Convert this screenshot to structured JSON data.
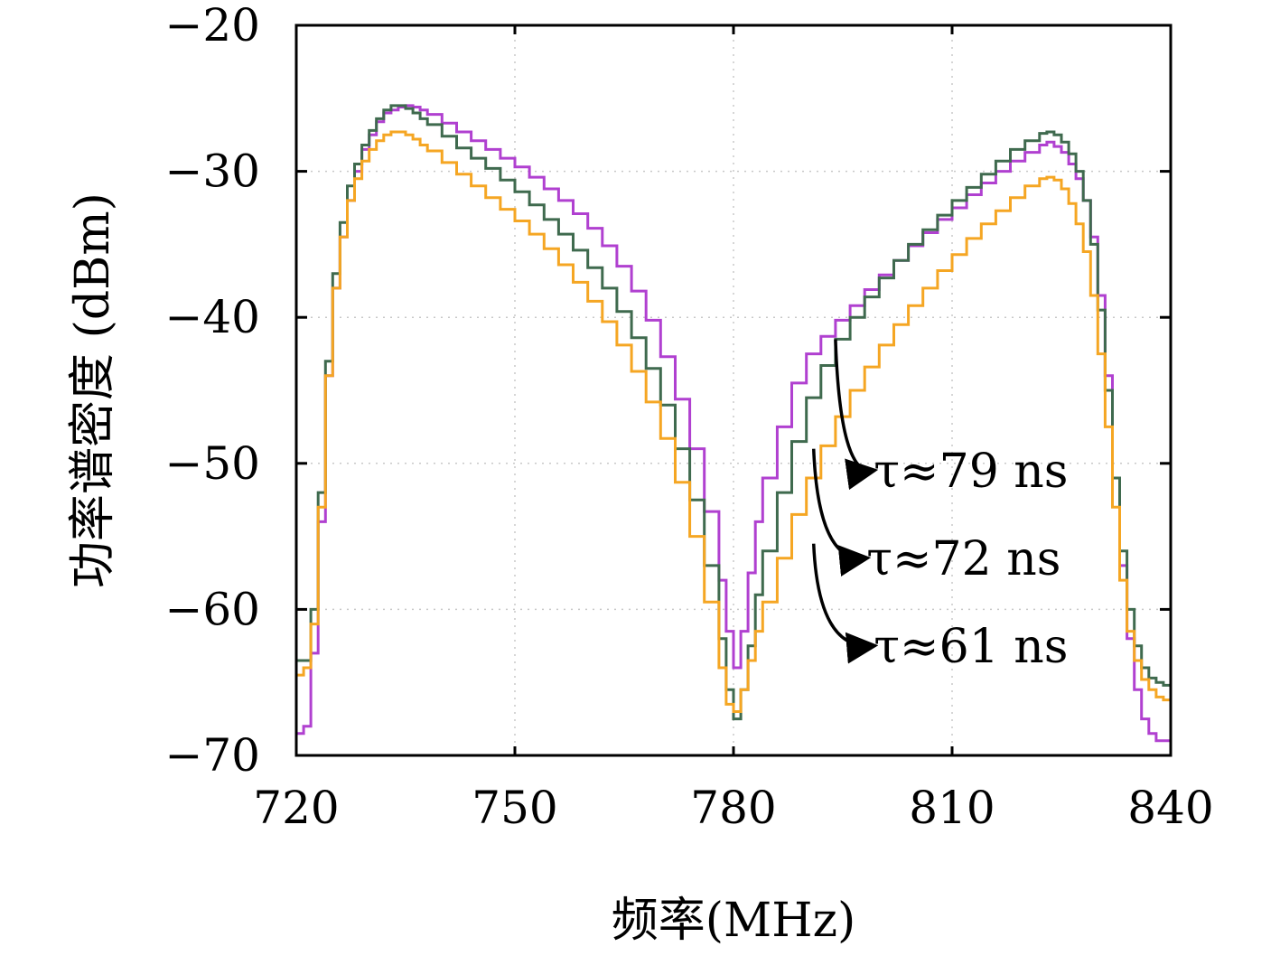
{
  "chart_data": {
    "type": "line",
    "title": "",
    "xlabel": "频率(MHz)",
    "ylabel": "功率谱密度 (dBm)",
    "xlim": [
      720,
      840
    ],
    "ylim": [
      -70,
      -20
    ],
    "xticks": [
      720,
      750,
      780,
      810,
      840
    ],
    "yticks": [
      -20,
      -30,
      -40,
      -50,
      -60,
      -70
    ],
    "xtick_labels": [
      "720",
      "750",
      "780",
      "810",
      "840"
    ],
    "ytick_labels": [
      "−20",
      "−30",
      "−40",
      "−50",
      "−60",
      "−70"
    ],
    "grid": true,
    "series": [
      {
        "name": "τ≈79 ns",
        "color": "#b040d0",
        "points": [
          [
            720,
            -68.5
          ],
          [
            721,
            -68
          ],
          [
            722,
            -63
          ],
          [
            723,
            -54
          ],
          [
            724,
            -44
          ],
          [
            725,
            -38
          ],
          [
            726,
            -34.5
          ],
          [
            727,
            -32
          ],
          [
            728,
            -30
          ],
          [
            729,
            -28.5
          ],
          [
            730,
            -27.5
          ],
          [
            731,
            -26.6
          ],
          [
            732,
            -26.0
          ],
          [
            733,
            -25.8
          ],
          [
            734,
            -25.6
          ],
          [
            735,
            -25.5
          ],
          [
            736,
            -25.6
          ],
          [
            737,
            -25.8
          ],
          [
            738,
            -26.1
          ],
          [
            740,
            -26.7
          ],
          [
            742,
            -27.3
          ],
          [
            744,
            -27.9
          ],
          [
            746,
            -28.5
          ],
          [
            748,
            -29.1
          ],
          [
            750,
            -29.7
          ],
          [
            752,
            -30.4
          ],
          [
            754,
            -31.2
          ],
          [
            756,
            -32.0
          ],
          [
            758,
            -32.9
          ],
          [
            760,
            -33.9
          ],
          [
            762,
            -35.1
          ],
          [
            764,
            -36.5
          ],
          [
            766,
            -38.2
          ],
          [
            768,
            -40.2
          ],
          [
            770,
            -42.7
          ],
          [
            772,
            -45.6
          ],
          [
            774,
            -49.0
          ],
          [
            776,
            -53.3
          ],
          [
            778,
            -58.0
          ],
          [
            779,
            -61.5
          ],
          [
            780,
            -64.0
          ],
          [
            781,
            -61.5
          ],
          [
            782,
            -57.5
          ],
          [
            783,
            -54.0
          ],
          [
            784,
            -51.0
          ],
          [
            786,
            -47.5
          ],
          [
            788,
            -44.5
          ],
          [
            790,
            -42.5
          ],
          [
            792,
            -41.3
          ],
          [
            794,
            -40.2
          ],
          [
            796,
            -39.2
          ],
          [
            798,
            -38.1
          ],
          [
            800,
            -37.1
          ],
          [
            802,
            -36.1
          ],
          [
            804,
            -35.1
          ],
          [
            806,
            -34.2
          ],
          [
            808,
            -33.3
          ],
          [
            810,
            -32.5
          ],
          [
            812,
            -31.6
          ],
          [
            814,
            -30.8
          ],
          [
            816,
            -30.0
          ],
          [
            818,
            -29.3
          ],
          [
            820,
            -28.7
          ],
          [
            822,
            -28.2
          ],
          [
            823,
            -28.0
          ],
          [
            824,
            -28.3
          ],
          [
            825,
            -28.7
          ],
          [
            826,
            -29.5
          ],
          [
            827,
            -30.5
          ],
          [
            828,
            -32.0
          ],
          [
            829,
            -34.5
          ],
          [
            830,
            -38.5
          ],
          [
            831,
            -44
          ],
          [
            832,
            -51
          ],
          [
            833,
            -57
          ],
          [
            834,
            -62
          ],
          [
            835,
            -65.5
          ],
          [
            836,
            -67.5
          ],
          [
            837,
            -68.5
          ],
          [
            838,
            -69.0
          ],
          [
            839,
            -69.0
          ],
          [
            840,
            -69.0
          ]
        ]
      },
      {
        "name": "τ≈72 ns",
        "color": "#3f6a4e",
        "points": [
          [
            720,
            -63.5
          ],
          [
            721,
            -63.5
          ],
          [
            722,
            -60
          ],
          [
            723,
            -52
          ],
          [
            724,
            -43
          ],
          [
            725,
            -37
          ],
          [
            726,
            -33.5
          ],
          [
            727,
            -31
          ],
          [
            728,
            -29.5
          ],
          [
            729,
            -28.2
          ],
          [
            730,
            -27.2
          ],
          [
            731,
            -26.4
          ],
          [
            732,
            -25.8
          ],
          [
            733,
            -25.5
          ],
          [
            734,
            -25.5
          ],
          [
            735,
            -25.7
          ],
          [
            736,
            -26.0
          ],
          [
            737,
            -26.4
          ],
          [
            738,
            -26.8
          ],
          [
            740,
            -27.6
          ],
          [
            742,
            -28.4
          ],
          [
            744,
            -29.1
          ],
          [
            746,
            -29.8
          ],
          [
            748,
            -30.6
          ],
          [
            750,
            -31.4
          ],
          [
            752,
            -32.3
          ],
          [
            754,
            -33.3
          ],
          [
            756,
            -34.3
          ],
          [
            758,
            -35.4
          ],
          [
            760,
            -36.6
          ],
          [
            762,
            -38.0
          ],
          [
            764,
            -39.6
          ],
          [
            766,
            -41.4
          ],
          [
            768,
            -43.5
          ],
          [
            770,
            -46.0
          ],
          [
            772,
            -49.0
          ],
          [
            774,
            -52.5
          ],
          [
            776,
            -57.0
          ],
          [
            778,
            -62.0
          ],
          [
            779,
            -65.5
          ],
          [
            780,
            -67.5
          ],
          [
            781,
            -65.5
          ],
          [
            782,
            -62.5
          ],
          [
            783,
            -59.0
          ],
          [
            784,
            -56.0
          ],
          [
            786,
            -52.0
          ],
          [
            788,
            -48.5
          ],
          [
            790,
            -45.5
          ],
          [
            792,
            -43.3
          ],
          [
            794,
            -41.5
          ],
          [
            796,
            -40.0
          ],
          [
            798,
            -38.6
          ],
          [
            800,
            -37.3
          ],
          [
            802,
            -36.1
          ],
          [
            804,
            -35.0
          ],
          [
            806,
            -34.0
          ],
          [
            808,
            -33.0
          ],
          [
            810,
            -32.0
          ],
          [
            812,
            -31.1
          ],
          [
            814,
            -30.2
          ],
          [
            816,
            -29.3
          ],
          [
            818,
            -28.5
          ],
          [
            820,
            -27.9
          ],
          [
            822,
            -27.4
          ],
          [
            823,
            -27.3
          ],
          [
            824,
            -27.5
          ],
          [
            825,
            -28.0
          ],
          [
            826,
            -28.8
          ],
          [
            827,
            -30.0
          ],
          [
            828,
            -32.0
          ],
          [
            829,
            -35.0
          ],
          [
            830,
            -39.5
          ],
          [
            831,
            -45
          ],
          [
            832,
            -51
          ],
          [
            833,
            -56
          ],
          [
            834,
            -60
          ],
          [
            835,
            -62.5
          ],
          [
            836,
            -64
          ],
          [
            837,
            -64.7
          ],
          [
            838,
            -65.0
          ],
          [
            839,
            -65.2
          ],
          [
            840,
            -65.2
          ]
        ]
      },
      {
        "name": "τ≈61 ns",
        "color": "#f5a623",
        "points": [
          [
            720,
            -64.5
          ],
          [
            721,
            -64
          ],
          [
            722,
            -61
          ],
          [
            723,
            -53
          ],
          [
            724,
            -44
          ],
          [
            725,
            -38
          ],
          [
            726,
            -34.5
          ],
          [
            727,
            -32
          ],
          [
            728,
            -30.5
          ],
          [
            729,
            -29.3
          ],
          [
            730,
            -28.5
          ],
          [
            731,
            -27.9
          ],
          [
            732,
            -27.5
          ],
          [
            733,
            -27.3
          ],
          [
            734,
            -27.3
          ],
          [
            735,
            -27.5
          ],
          [
            736,
            -27.8
          ],
          [
            737,
            -28.2
          ],
          [
            738,
            -28.6
          ],
          [
            740,
            -29.4
          ],
          [
            742,
            -30.2
          ],
          [
            744,
            -31.0
          ],
          [
            746,
            -31.8
          ],
          [
            748,
            -32.6
          ],
          [
            750,
            -33.4
          ],
          [
            752,
            -34.3
          ],
          [
            754,
            -35.3
          ],
          [
            756,
            -36.4
          ],
          [
            758,
            -37.6
          ],
          [
            760,
            -38.9
          ],
          [
            762,
            -40.3
          ],
          [
            764,
            -41.9
          ],
          [
            766,
            -43.7
          ],
          [
            768,
            -45.8
          ],
          [
            770,
            -48.3
          ],
          [
            772,
            -51.3
          ],
          [
            774,
            -55.0
          ],
          [
            776,
            -59.5
          ],
          [
            778,
            -64.0
          ],
          [
            779,
            -66.5
          ],
          [
            780,
            -67.0
          ],
          [
            781,
            -65.5
          ],
          [
            782,
            -63.5
          ],
          [
            783,
            -61.5
          ],
          [
            784,
            -59.5
          ],
          [
            786,
            -56.5
          ],
          [
            788,
            -53.5
          ],
          [
            790,
            -51.0
          ],
          [
            792,
            -48.8
          ],
          [
            794,
            -46.8
          ],
          [
            796,
            -45.0
          ],
          [
            798,
            -43.4
          ],
          [
            800,
            -41.9
          ],
          [
            802,
            -40.5
          ],
          [
            804,
            -39.2
          ],
          [
            806,
            -38.0
          ],
          [
            808,
            -36.8
          ],
          [
            810,
            -35.7
          ],
          [
            812,
            -34.6
          ],
          [
            814,
            -33.6
          ],
          [
            816,
            -32.7
          ],
          [
            818,
            -31.8
          ],
          [
            820,
            -31.0
          ],
          [
            822,
            -30.5
          ],
          [
            823,
            -30.4
          ],
          [
            824,
            -30.6
          ],
          [
            825,
            -31.2
          ],
          [
            826,
            -32.2
          ],
          [
            827,
            -33.6
          ],
          [
            828,
            -35.5
          ],
          [
            829,
            -38.5
          ],
          [
            830,
            -42.5
          ],
          [
            831,
            -47.5
          ],
          [
            832,
            -53
          ],
          [
            833,
            -58
          ],
          [
            834,
            -61.5
          ],
          [
            835,
            -63.5
          ],
          [
            836,
            -64.8
          ],
          [
            837,
            -65.5
          ],
          [
            838,
            -66.0
          ],
          [
            839,
            -66.2
          ],
          [
            840,
            -66.2
          ]
        ]
      }
    ],
    "annotations": [
      {
        "text": "τ≈79 ns",
        "from": [
          794,
          -41.5
        ],
        "to": [
          799,
          -50.5
        ]
      },
      {
        "text": "τ≈72 ns",
        "from": [
          791,
          -49
        ],
        "to": [
          798,
          -56.5
        ]
      },
      {
        "text": "τ≈61 ns",
        "from": [
          791,
          -55.5
        ],
        "to": [
          799,
          -62.5
        ]
      }
    ]
  }
}
